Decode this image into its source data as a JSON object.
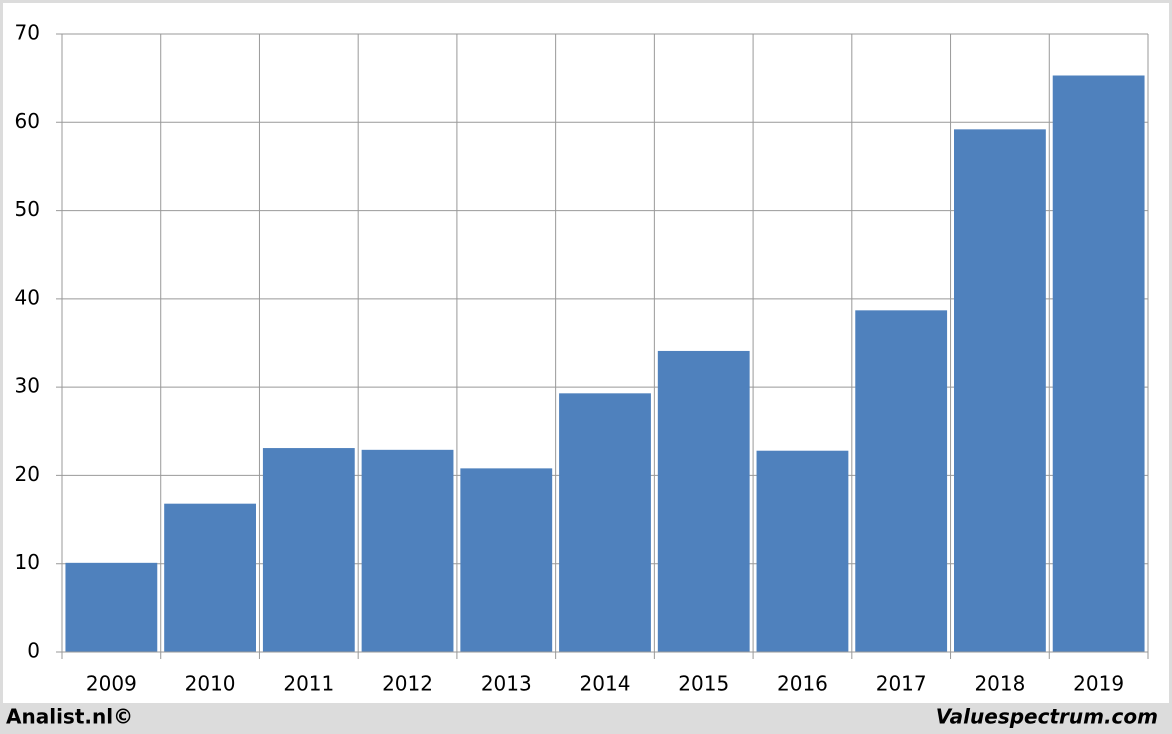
{
  "chart_data": {
    "type": "bar",
    "categories": [
      "2009",
      "2010",
      "2011",
      "2012",
      "2013",
      "2014",
      "2015",
      "2016",
      "2017",
      "2018",
      "2019"
    ],
    "values": [
      10.1,
      16.8,
      23.1,
      22.9,
      20.8,
      29.3,
      34.1,
      22.8,
      38.7,
      59.2,
      65.3
    ],
    "color": "#4f81bd",
    "ylim": [
      0,
      70
    ],
    "yticks": [
      0,
      10,
      20,
      30,
      40,
      50,
      60,
      70
    ],
    "grid": true
  },
  "footer": {
    "left": "Analist.nl©",
    "right": "Valuespectrum.com"
  }
}
